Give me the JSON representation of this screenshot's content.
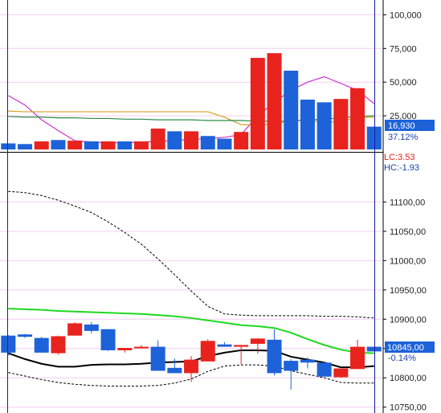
{
  "chart_data": [
    {
      "type": "bar",
      "panel": "volume",
      "ylim": [
        0,
        108000
      ],
      "yticks": [
        "100,000",
        "75,000",
        "50,000",
        "25,000"
      ],
      "ytick_values": [
        100000,
        75000,
        50000,
        25000
      ],
      "current_volume_label": "16,930",
      "current_ratio_label": "37.12%",
      "values": [
        4500,
        4000,
        6000,
        7000,
        6500,
        6000,
        6000,
        6000,
        6000,
        15500,
        13500,
        13500,
        10000,
        8000,
        13000,
        68000,
        71500,
        58500,
        37000,
        35000,
        37500,
        45500,
        16930
      ],
      "colors": [
        "blue",
        "blue",
        "red",
        "blue",
        "red",
        "blue",
        "red",
        "blue",
        "red",
        "red",
        "blue",
        "red",
        "blue",
        "blue",
        "red",
        "red",
        "red",
        "blue",
        "blue",
        "blue",
        "red",
        "red",
        "blue"
      ],
      "series": [
        {
          "color": "#cc33cc",
          "values": [
            40000,
            33000,
            22000,
            14000,
            6500,
            5500,
            5000,
            5000,
            5500,
            6000,
            6500,
            7500,
            8000,
            9000,
            11000,
            25000,
            35000,
            44000,
            50000,
            54000,
            49000,
            44000,
            34000
          ]
        },
        {
          "color": "#d4a020",
          "values": [
            28500,
            28000,
            28000,
            28000,
            28000,
            28000,
            28000,
            28000,
            28000,
            28000,
            28000,
            28000,
            28000,
            24000,
            18500,
            18000,
            19000,
            21500,
            22000,
            20000,
            21000,
            23500,
            24000
          ]
        },
        {
          "color": "#2c8c48",
          "values": [
            24500,
            24000,
            24000,
            23500,
            23500,
            23000,
            23000,
            22500,
            22500,
            22000,
            22000,
            22000,
            21500,
            21500,
            21500,
            21000,
            21000,
            21000,
            22000,
            22500,
            23500,
            24500,
            25000
          ]
        }
      ]
    },
    {
      "type": "candlestick",
      "panel": "price",
      "ylim": [
        10740,
        11180
      ],
      "yticks": [
        "11100,00",
        "11050,00",
        "11000,00",
        "10950,00",
        "10900,00",
        "10850,00",
        "10800,00",
        "10750,00"
      ],
      "ytick_values": [
        11100,
        11050,
        11000,
        10950,
        10900,
        10850,
        10800,
        10750
      ],
      "top_labels": [
        "LC:3.53",
        "HC:-1.93"
      ],
      "current_price_label": "10845,00",
      "current_change_label": "-0.14%",
      "candles": [
        {
          "o": 10843,
          "h": 10873,
          "l": 10838,
          "c": 10872,
          "dir": "down"
        },
        {
          "o": 10874,
          "h": 10875,
          "l": 10868,
          "c": 10870,
          "dir": "down"
        },
        {
          "o": 10868,
          "h": 10870,
          "l": 10843,
          "c": 10843,
          "dir": "down"
        },
        {
          "o": 10842,
          "h": 10872,
          "l": 10840,
          "c": 10871,
          "dir": "up"
        },
        {
          "o": 10872,
          "h": 10895,
          "l": 10872,
          "c": 10893,
          "dir": "up"
        },
        {
          "o": 10891,
          "h": 10895,
          "l": 10876,
          "c": 10880,
          "dir": "down"
        },
        {
          "o": 10883,
          "h": 10883,
          "l": 10846,
          "c": 10847,
          "dir": "down"
        },
        {
          "o": 10847,
          "h": 10851,
          "l": 10843,
          "c": 10851,
          "dir": "up"
        },
        {
          "o": 10851,
          "h": 10856,
          "l": 10850,
          "c": 10853,
          "dir": "up"
        },
        {
          "o": 10853,
          "h": 10864,
          "l": 10812,
          "c": 10812,
          "dir": "down"
        },
        {
          "o": 10817,
          "h": 10833,
          "l": 10808,
          "c": 10808,
          "dir": "down"
        },
        {
          "o": 10808,
          "h": 10837,
          "l": 10793,
          "c": 10831,
          "dir": "up"
        },
        {
          "o": 10828,
          "h": 10866,
          "l": 10828,
          "c": 10863,
          "dir": "up"
        },
        {
          "o": 10857,
          "h": 10861,
          "l": 10853,
          "c": 10853,
          "dir": "down"
        },
        {
          "o": 10853,
          "h": 10856,
          "l": 10823,
          "c": 10856,
          "dir": "up"
        },
        {
          "o": 10858,
          "h": 10868,
          "l": 10841,
          "c": 10867,
          "dir": "up"
        },
        {
          "o": 10865,
          "h": 10883,
          "l": 10804,
          "c": 10808,
          "dir": "down"
        },
        {
          "o": 10829,
          "h": 10832,
          "l": 10780,
          "c": 10812,
          "dir": "down"
        },
        {
          "o": 10831,
          "h": 10835,
          "l": 10816,
          "c": 10826,
          "dir": "down"
        },
        {
          "o": 10826,
          "h": 10826,
          "l": 10802,
          "c": 10802,
          "dir": "down"
        },
        {
          "o": 10801,
          "h": 10816,
          "l": 10800,
          "c": 10816,
          "dir": "up"
        },
        {
          "o": 10815,
          "h": 10865,
          "l": 10815,
          "c": 10853,
          "dir": "up"
        },
        {
          "o": 10853,
          "h": 10853,
          "l": 10845,
          "c": 10845,
          "dir": "down"
        }
      ],
      "lines": [
        {
          "color": "#1ed81e",
          "style": "solid",
          "values": [
            10918,
            10917,
            10916,
            10914,
            10913,
            10912,
            10911,
            10910,
            10909,
            10907,
            10905,
            10902,
            10898,
            10894,
            10890,
            10888,
            10885,
            10877,
            10866,
            10856,
            10848,
            10843,
            10842
          ]
        },
        {
          "color": "#000000",
          "style": "solid",
          "values": [
            10842,
            10832,
            10824,
            10819,
            10819,
            10822,
            10823,
            10823,
            10824,
            10826,
            10827,
            10828,
            10837,
            10843,
            10847,
            10847,
            10846,
            10836,
            10831,
            10826,
            10818,
            10818,
            10820
          ]
        },
        {
          "color": "#000000",
          "style": "dashed",
          "values": [
            11118,
            11116,
            11111,
            11103,
            11093,
            11082,
            11066,
            11048,
            11028,
            11003,
            10976,
            10948,
            10922,
            10909,
            10907,
            10906,
            10906,
            10906,
            10906,
            10905,
            10905,
            10904,
            10902
          ]
        },
        {
          "color": "#000000",
          "style": "dashed",
          "values": [
            10809,
            10803,
            10797,
            10792,
            10789,
            10787,
            10786,
            10786,
            10786,
            10787,
            10791,
            10798,
            10811,
            10820,
            10822,
            10822,
            10820,
            10812,
            10806,
            10800,
            10792,
            10791,
            10791
          ]
        }
      ]
    }
  ],
  "colors": {
    "up": "#e8231e",
    "down": "#1d62d8",
    "grid": "#f3cdf0",
    "axis_line": "#1a1aa0",
    "price_bg": "#1d62d8"
  }
}
